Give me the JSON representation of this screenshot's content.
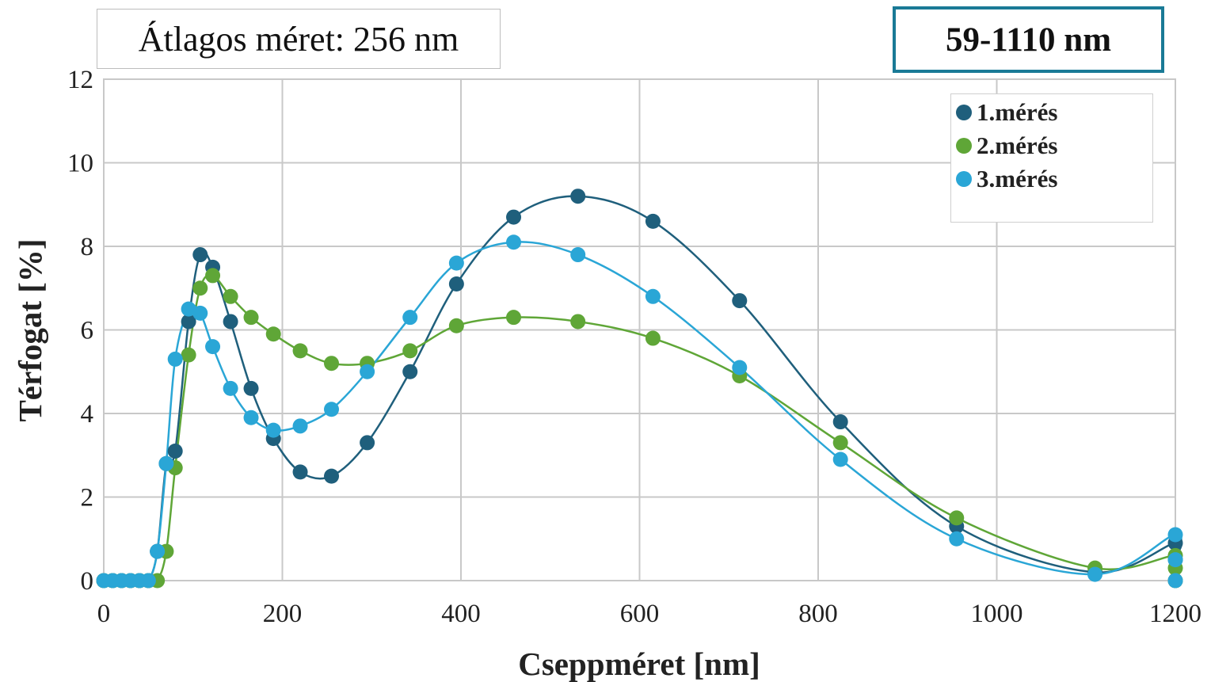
{
  "average_box": {
    "text": "Átlagos méret: 256 nm"
  },
  "range_box": {
    "text": "59-1110 nm",
    "border_color": "#1a7a96"
  },
  "chart_data": {
    "type": "line",
    "xlabel": "Cseppméret [nm]",
    "ylabel": "Térfogat [%]",
    "xlim": [
      0,
      1200
    ],
    "ylim": [
      0,
      12
    ],
    "x_ticks": [
      "0",
      "200",
      "400",
      "600",
      "800",
      "1000",
      "1200"
    ],
    "y_ticks": [
      "0",
      "2",
      "4",
      "6",
      "8",
      "10",
      "12"
    ],
    "grid": true,
    "legend_position": "top-right",
    "series": [
      {
        "name": "1.mérés",
        "color": "#1f5f7c",
        "points": [
          [
            0,
            0
          ],
          [
            10,
            0
          ],
          [
            20,
            0
          ],
          [
            30,
            0
          ],
          [
            40,
            0
          ],
          [
            50,
            0
          ],
          [
            60,
            0.7
          ],
          [
            70,
            2.8
          ],
          [
            80,
            3.1
          ],
          [
            95,
            6.2
          ],
          [
            108,
            7.8
          ],
          [
            122,
            7.5
          ],
          [
            142,
            6.2
          ],
          [
            165,
            4.6
          ],
          [
            190,
            3.4
          ],
          [
            220,
            2.6
          ],
          [
            255,
            2.5
          ],
          [
            295,
            3.3
          ],
          [
            343,
            5.0
          ],
          [
            395,
            7.1
          ],
          [
            459,
            8.7
          ],
          [
            531,
            9.2
          ],
          [
            615,
            8.6
          ],
          [
            712,
            6.7
          ],
          [
            825,
            3.8
          ],
          [
            955,
            1.3
          ],
          [
            1110,
            0.2
          ],
          [
            1200,
            0.9
          ],
          [
            1200,
            0.5
          ],
          [
            1200,
            0
          ]
        ]
      },
      {
        "name": "2.mérés",
        "color": "#5fa637",
        "points": [
          [
            0,
            0
          ],
          [
            10,
            0
          ],
          [
            20,
            0
          ],
          [
            30,
            0
          ],
          [
            40,
            0
          ],
          [
            50,
            0
          ],
          [
            60,
            0
          ],
          [
            70,
            0.7
          ],
          [
            80,
            2.7
          ],
          [
            95,
            5.4
          ],
          [
            108,
            7.0
          ],
          [
            122,
            7.3
          ],
          [
            142,
            6.8
          ],
          [
            165,
            6.3
          ],
          [
            190,
            5.9
          ],
          [
            220,
            5.5
          ],
          [
            255,
            5.2
          ],
          [
            295,
            5.2
          ],
          [
            343,
            5.5
          ],
          [
            395,
            6.1
          ],
          [
            459,
            6.3
          ],
          [
            531,
            6.2
          ],
          [
            615,
            5.8
          ],
          [
            712,
            4.9
          ],
          [
            825,
            3.3
          ],
          [
            955,
            1.5
          ],
          [
            1110,
            0.3
          ],
          [
            1200,
            0.6
          ],
          [
            1200,
            0.3
          ],
          [
            1200,
            0
          ]
        ]
      },
      {
        "name": "3.mérés",
        "color": "#2aa6d6",
        "points": [
          [
            0,
            0
          ],
          [
            10,
            0
          ],
          [
            20,
            0
          ],
          [
            30,
            0
          ],
          [
            40,
            0
          ],
          [
            50,
            0
          ],
          [
            60,
            0.7
          ],
          [
            70,
            2.8
          ],
          [
            80,
            5.3
          ],
          [
            95,
            6.5
          ],
          [
            108,
            6.4
          ],
          [
            122,
            5.6
          ],
          [
            142,
            4.6
          ],
          [
            165,
            3.9
          ],
          [
            190,
            3.6
          ],
          [
            220,
            3.7
          ],
          [
            255,
            4.1
          ],
          [
            295,
            5.0
          ],
          [
            343,
            6.3
          ],
          [
            395,
            7.6
          ],
          [
            459,
            8.1
          ],
          [
            531,
            7.8
          ],
          [
            615,
            6.8
          ],
          [
            712,
            5.1
          ],
          [
            825,
            2.9
          ],
          [
            955,
            1.0
          ],
          [
            1110,
            0.15
          ],
          [
            1200,
            1.1
          ],
          [
            1200,
            0.5
          ],
          [
            1200,
            0
          ]
        ]
      }
    ]
  }
}
